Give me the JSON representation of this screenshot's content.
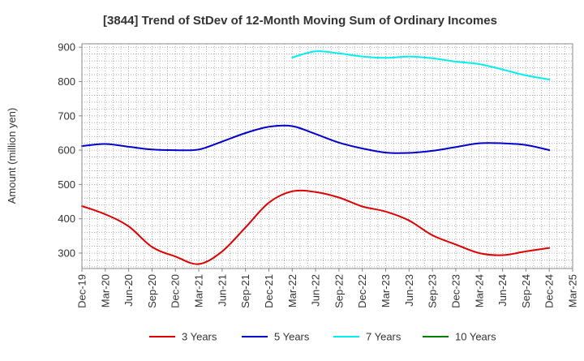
{
  "chart_data": {
    "type": "line",
    "title": "[3844]  Trend of StDev of 12-Month Moving Sum of Ordinary Incomes",
    "ylabel": "Amount (million yen)",
    "xlabel": "",
    "ylim": [
      255,
      910
    ],
    "yticks": [
      300,
      400,
      500,
      600,
      700,
      800,
      900
    ],
    "x_tick_labels": [
      "Dec-19",
      "Mar-20",
      "Jun-20",
      "Sep-20",
      "Dec-20",
      "Mar-21",
      "Jun-21",
      "Sep-21",
      "Dec-21",
      "Mar-22",
      "Jun-22",
      "Sep-22",
      "Dec-22",
      "Mar-23",
      "Jun-23",
      "Sep-23",
      "Dec-23",
      "Mar-24",
      "Jun-24",
      "Sep-24",
      "Dec-24",
      "Mar-25"
    ],
    "grid": true,
    "legend_position": "bottom",
    "series": [
      {
        "name": "3 Years",
        "color": "#dd0000",
        "values": [
          437,
          413,
          378,
          318,
          290,
          268,
          305,
          375,
          447,
          480,
          478,
          462,
          436,
          421,
          395,
          352,
          325,
          300,
          294,
          305,
          315,
          null
        ]
      },
      {
        "name": "5 Years",
        "color": "#0000cc",
        "values": [
          612,
          618,
          610,
          602,
          600,
          602,
          625,
          650,
          668,
          670,
          647,
          622,
          605,
          593,
          592,
          598,
          609,
          620,
          620,
          615,
          600,
          null
        ]
      },
      {
        "name": "7 Years",
        "color": "#00eeee",
        "values": [
          null,
          null,
          null,
          null,
          null,
          null,
          null,
          null,
          null,
          870,
          888,
          882,
          873,
          869,
          873,
          868,
          858,
          851,
          835,
          818,
          806,
          null
        ]
      },
      {
        "name": "10 Years",
        "color": "#008000",
        "values": [
          null,
          null,
          null,
          null,
          null,
          null,
          null,
          null,
          null,
          null,
          null,
          null,
          null,
          null,
          null,
          null,
          null,
          null,
          null,
          null,
          null,
          null
        ]
      }
    ]
  }
}
